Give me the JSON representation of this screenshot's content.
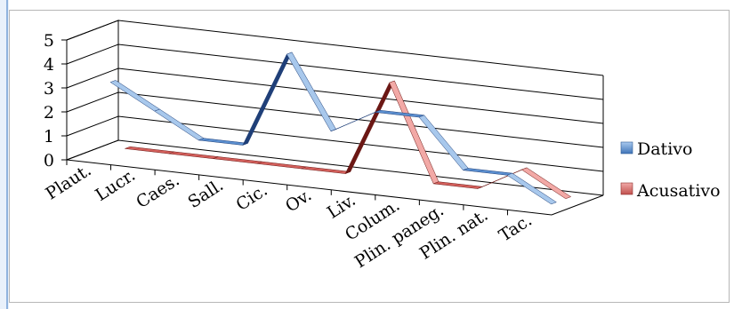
{
  "chart_data": {
    "type": "line",
    "style": "3d-ribbon",
    "categories": [
      "Plaut.",
      "Lucr.",
      "Caes.",
      "Sall.",
      "Cic.",
      "Ov.",
      "Liv.",
      "Colum.",
      "Plin. paneg.",
      "Plin. nat.",
      "Tac."
    ],
    "series": [
      {
        "name": "Dativo",
        "color": "#4f81bd",
        "values": [
          3,
          2,
          1,
          1,
          5,
          2,
          3,
          3,
          1,
          1,
          0
        ]
      },
      {
        "name": "Acusativo",
        "color": "#c0504d",
        "values": [
          0,
          0,
          0,
          0,
          0,
          0,
          4,
          0,
          0,
          1,
          0
        ]
      }
    ],
    "y_ticks": [
      "0",
      "1",
      "2",
      "3",
      "4",
      "5"
    ],
    "ylim": [
      0,
      5
    ],
    "grid": true,
    "legend": "right"
  }
}
